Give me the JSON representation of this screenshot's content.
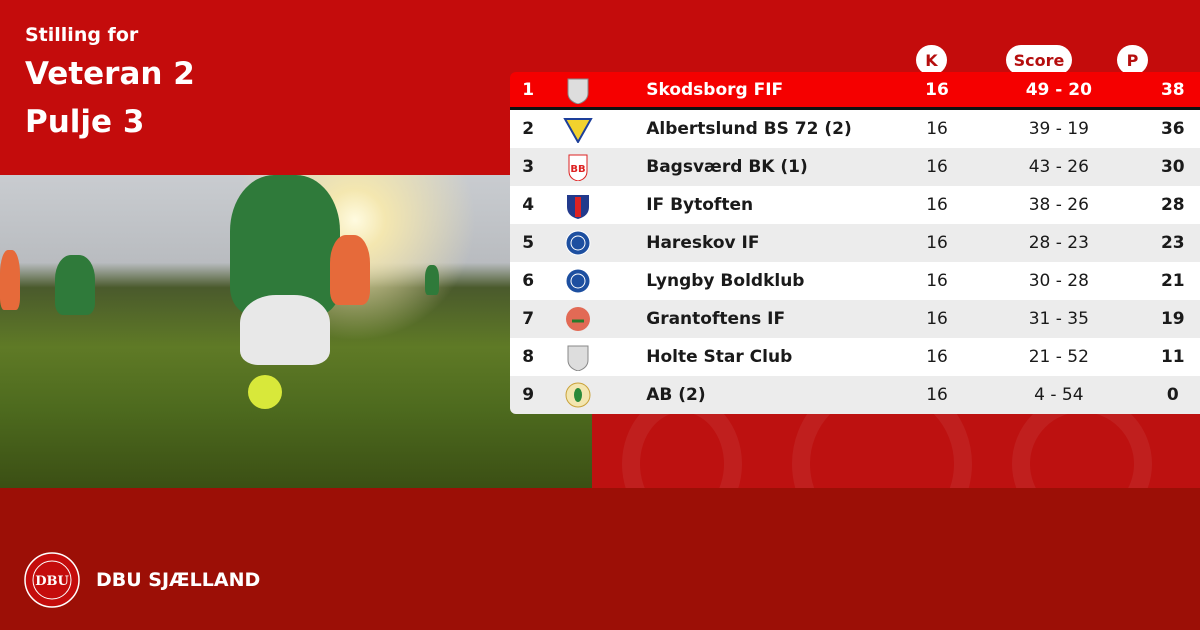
{
  "heading": {
    "subtitle": "Stilling for",
    "line1": "Veteran 2",
    "line2": "Pulje 3"
  },
  "columns": {
    "k": "K",
    "score": "Score",
    "p": "P"
  },
  "colors": {
    "top_red": "#c40c0c",
    "bottom_red": "#9c0f06",
    "highlight": "#f50000"
  },
  "rows": [
    {
      "pos": "1",
      "team": "Skodsborg FIF",
      "k": "16",
      "score": "49 - 20",
      "p": "38",
      "logo": "shield-grey"
    },
    {
      "pos": "2",
      "team": "Albertslund BS 72 (2)",
      "k": "16",
      "score": "39 - 19",
      "p": "36",
      "logo": "triangle-yellow-blue"
    },
    {
      "pos": "3",
      "team": "Bagsværd BK (1)",
      "k": "16",
      "score": "43 - 26",
      "p": "30",
      "logo": "shield-red-white"
    },
    {
      "pos": "4",
      "team": "IF Bytoften",
      "k": "16",
      "score": "38 - 26",
      "p": "28",
      "logo": "shield-blue-red"
    },
    {
      "pos": "5",
      "team": "Hareskov IF",
      "k": "16",
      "score": "28 - 23",
      "p": "23",
      "logo": "circle-blue"
    },
    {
      "pos": "6",
      "team": "Lyngby Boldklub",
      "k": "16",
      "score": "30 - 28",
      "p": "21",
      "logo": "circle-blue"
    },
    {
      "pos": "7",
      "team": "Grantoftens IF",
      "k": "16",
      "score": "31 - 35",
      "p": "19",
      "logo": "circle-red-green"
    },
    {
      "pos": "8",
      "team": "Holte Star Club",
      "k": "16",
      "score": "21 - 52",
      "p": "11",
      "logo": "shield-grey"
    },
    {
      "pos": "9",
      "team": "AB (2)",
      "k": "16",
      "score": "4 - 54",
      "p": "0",
      "logo": "circle-green-gold"
    }
  ],
  "footer": {
    "brand": "DBU SJÆLLAND",
    "logo_text": "DANSK BOLDSPIL-UNION 1889 DBU"
  }
}
